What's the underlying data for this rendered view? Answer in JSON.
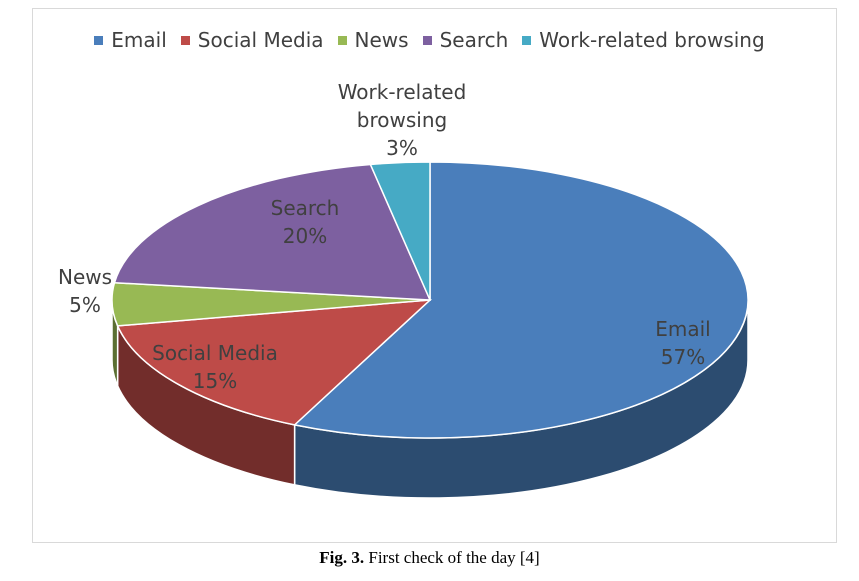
{
  "chart_data": {
    "type": "pie3d",
    "categories": [
      "Email",
      "Social Media",
      "News",
      "Search",
      "Work-related browsing"
    ],
    "values": [
      57,
      15,
      5,
      20,
      3
    ],
    "value_labels": [
      "57%",
      "15%",
      "5%",
      "20%",
      "3%"
    ],
    "colors": [
      "#4a7ebb",
      "#be4b48",
      "#98b954",
      "#7d60a0",
      "#46aac5"
    ],
    "legend": "top",
    "caption": {
      "label": "Fig. 3.",
      "text": "First check of the day [4]"
    }
  }
}
